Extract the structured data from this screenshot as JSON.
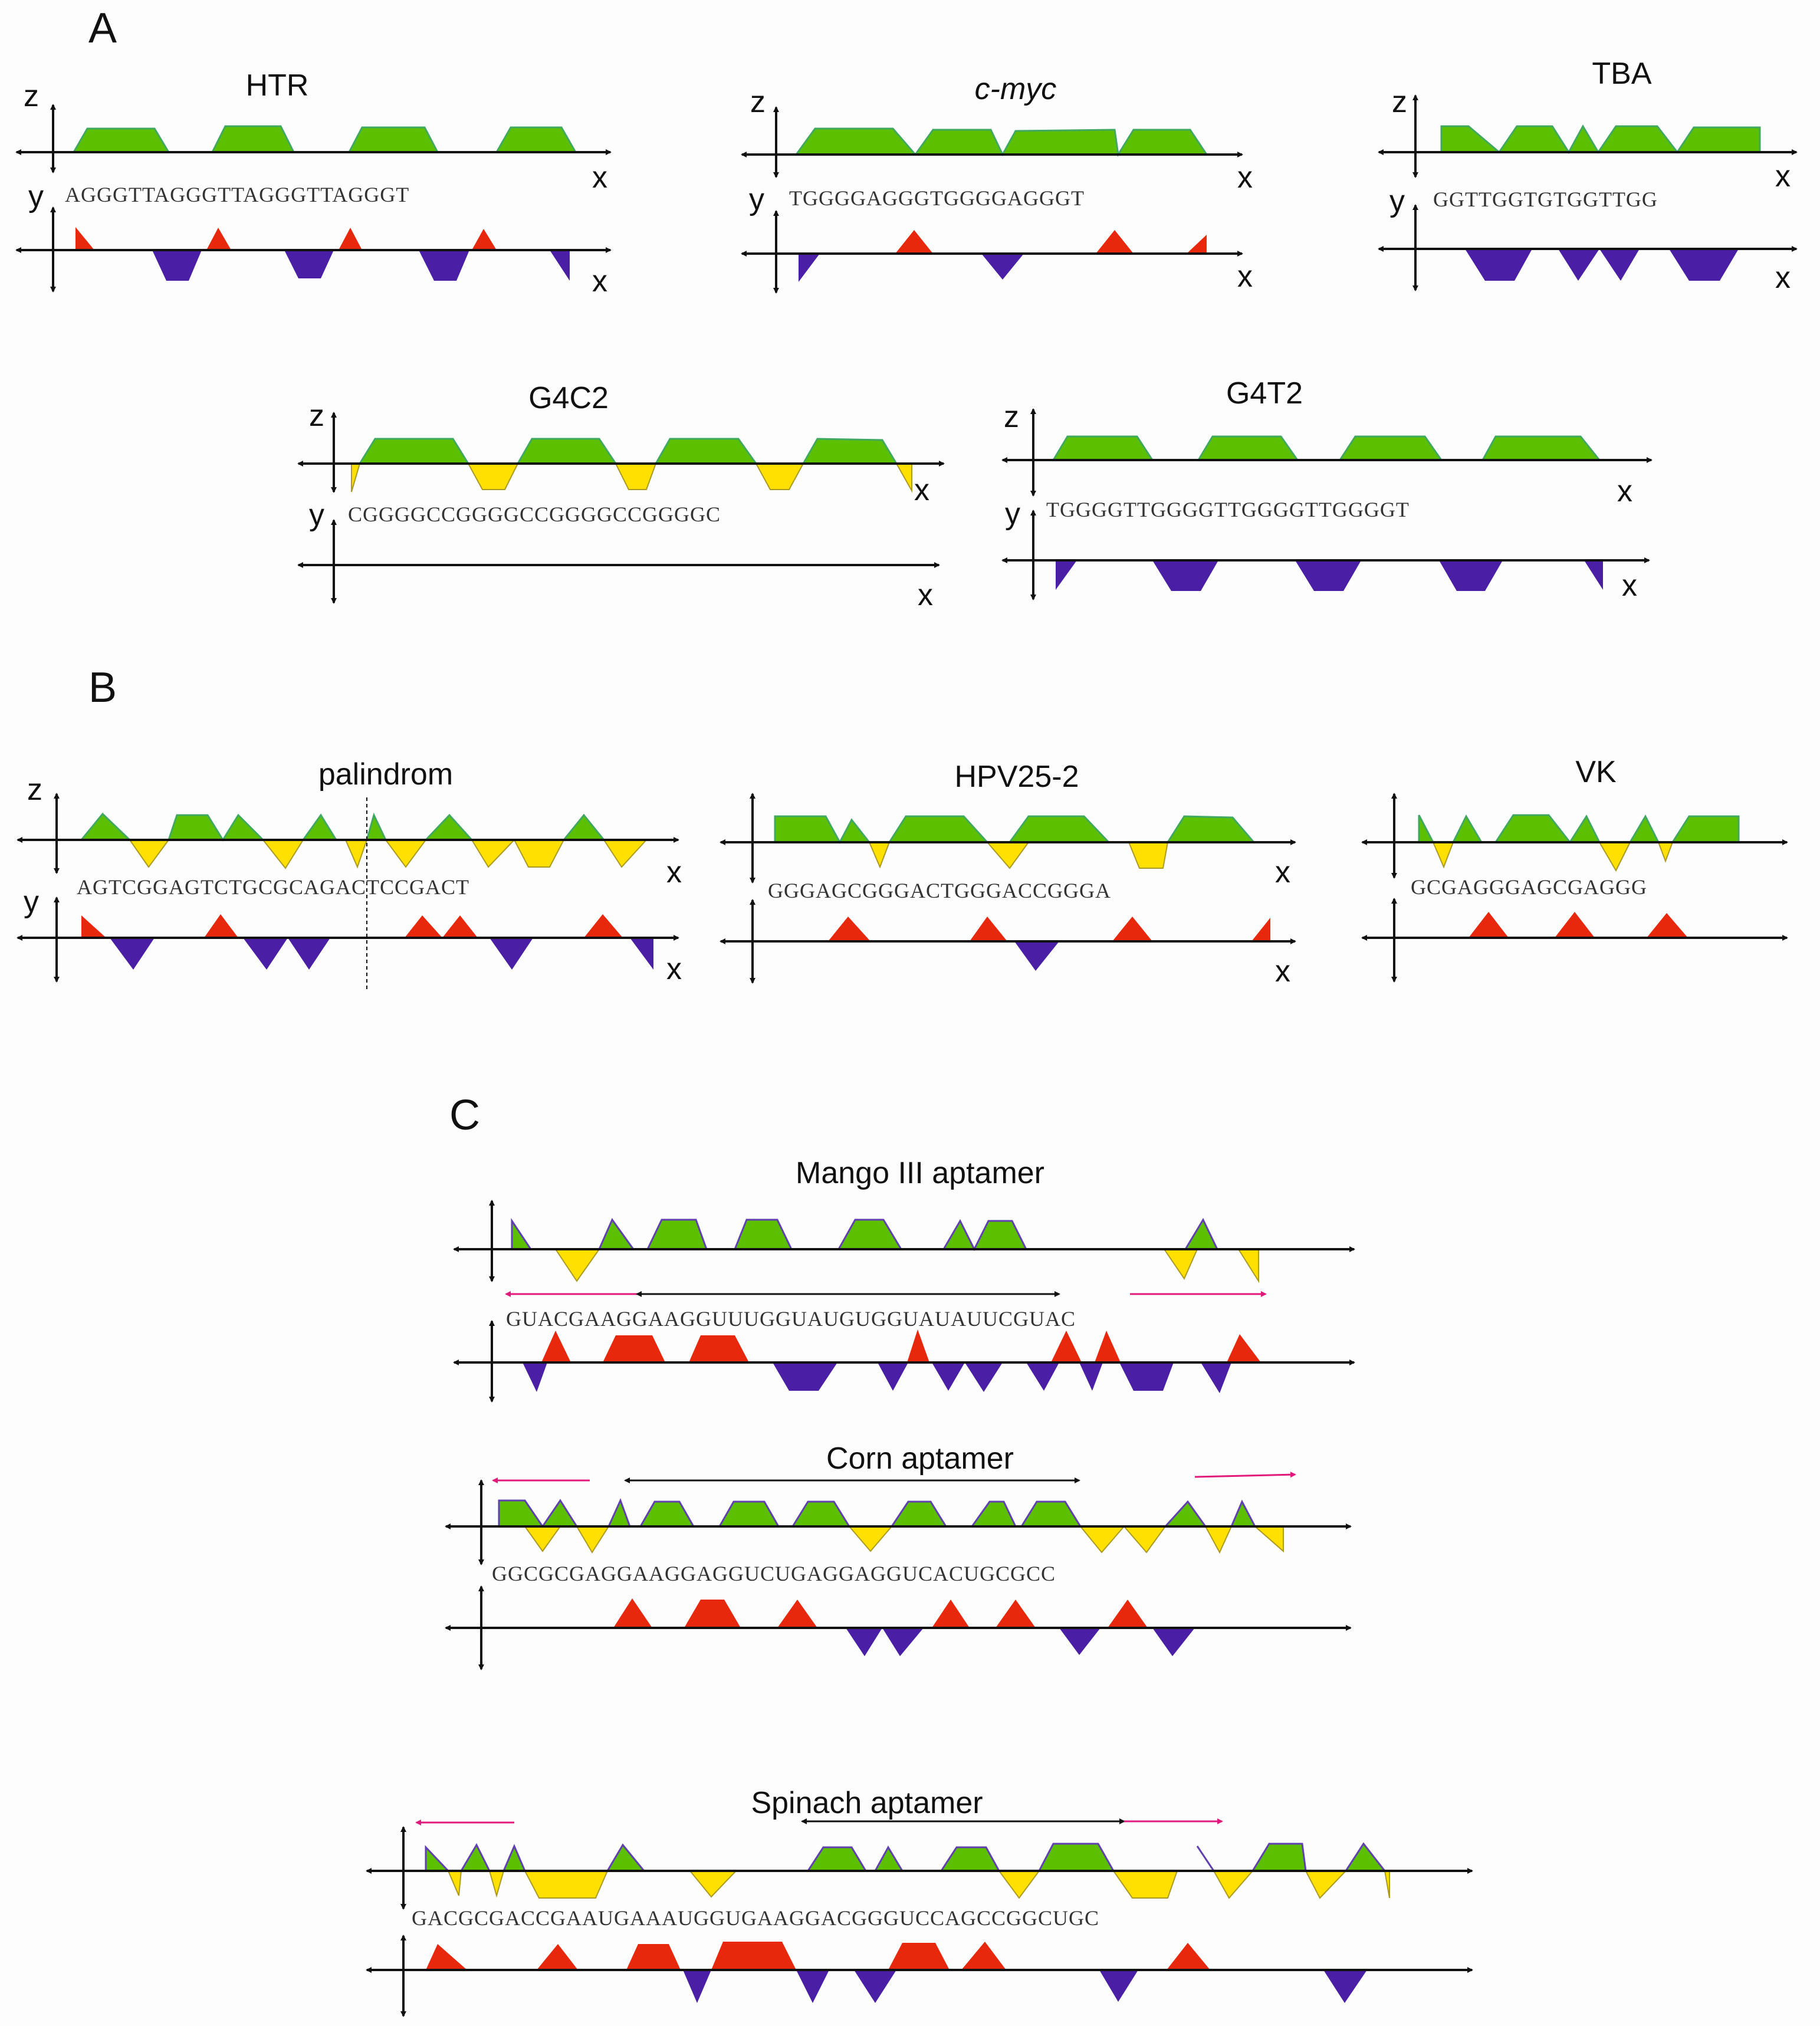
{
  "colors": {
    "green": "#5cc000",
    "yellow": "#ffe000",
    "red": "#e8280c",
    "blue": "#4a1fa5",
    "axis": "#111111",
    "pink": "#e0197a",
    "ztop": "#40a860",
    "ybase": "#cc3322"
  },
  "sections": {
    "a": "A",
    "b": "B",
    "c": "C"
  },
  "axis_labels": {
    "x": "x",
    "y": "y",
    "z": "z"
  },
  "panels": {
    "htr": {
      "title": "HTR",
      "sequence": "AGGGTTAGGGTTAGGGTTAGGGT"
    },
    "cmyc": {
      "title": "c-myc",
      "sequence": "TGGGGAGGGTGGGGAGGGT"
    },
    "tba": {
      "title": "TBA",
      "sequence": "GGTTGGTGTGGTTGG"
    },
    "g4c2": {
      "title": "G4C2",
      "sequence": "CGGGGCCGGGGCCGGGGCCGGGGC"
    },
    "g4t2": {
      "title": "G4T2",
      "sequence": "TGGGGTTGGGGTTGGGGTTGGGGT"
    },
    "palindrom": {
      "title": "palindrom",
      "sequence": "AGTCGGAGTCTGCGCAGACTCCGACT"
    },
    "hpv": {
      "title": "HPV25-2",
      "sequence": "GGGAGCGGGACTGGGACCGGGA"
    },
    "vk": {
      "title": "VK",
      "sequence": "GCGAGGGAGCGAGGG"
    },
    "mango": {
      "title": "Mango III aptamer",
      "sequence": "GUACGAAGGAAGGUUUGGUAUGUGGUAUAUUCGUAC"
    },
    "corn": {
      "title": "Corn aptamer",
      "sequence": "GGCGCGAGGAAGGAGGUCUGAGGAGGUCACUGCGCC"
    },
    "spinach": {
      "title": "Spinach aptamer",
      "sequence": "GACGCGACCGAAUGAAAUGGUGAAGGACGGGUCCAGCCGGCUGC"
    }
  }
}
